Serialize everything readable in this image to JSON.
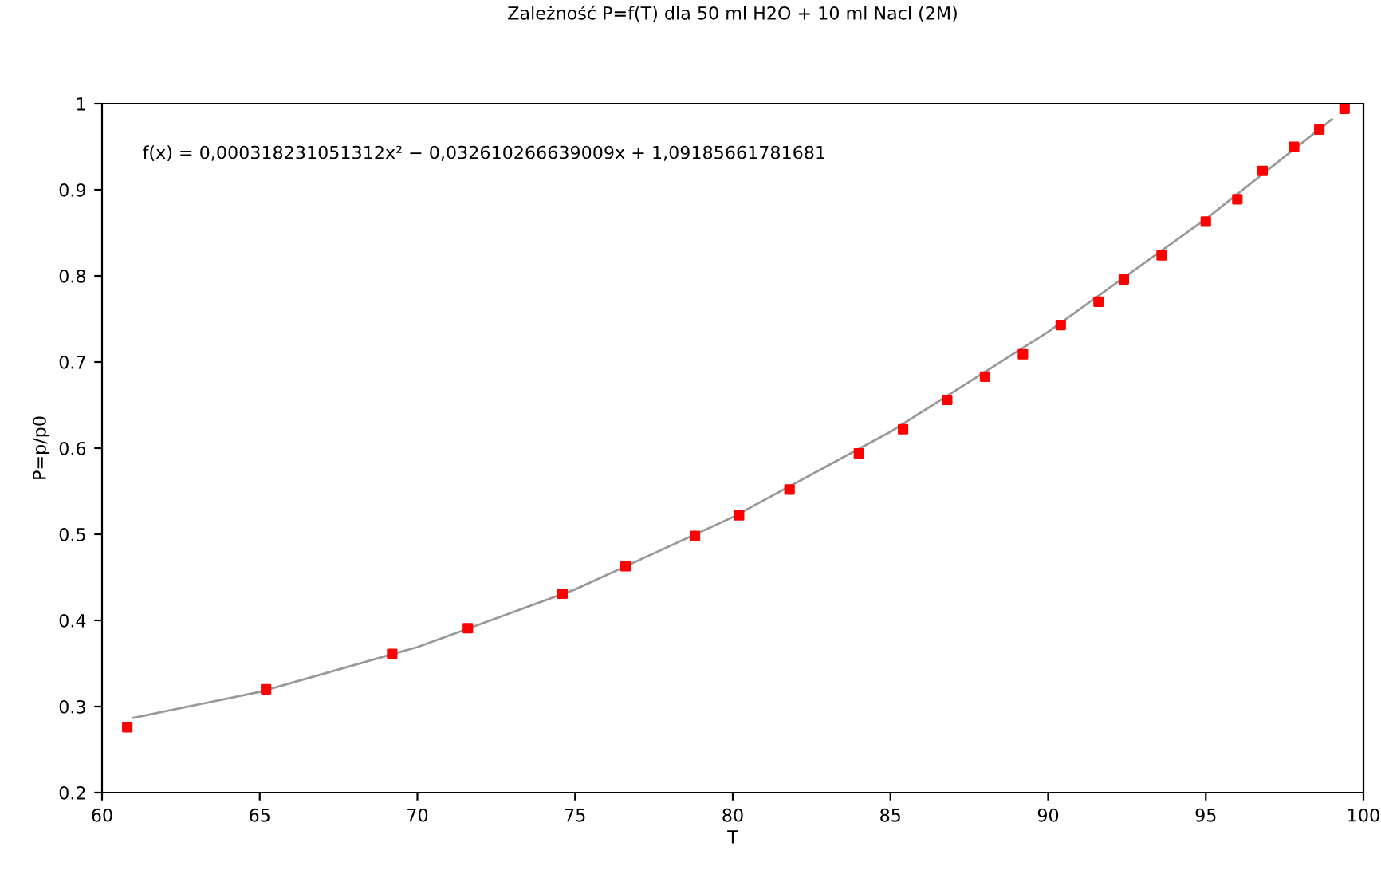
{
  "chart_data": {
    "type": "scatter",
    "title": "Zależność P=f(T) dla 50 ml H2O + 10 ml Nacl (2M)",
    "xlabel": "T",
    "ylabel": "P=p/p0",
    "annotations": [
      "f(x) = 0,000318231051312x² − 0,032610266639009x + 1,09185661781681"
    ],
    "xlim": [
      60,
      100
    ],
    "xticks": [
      60,
      65,
      70,
      75,
      80,
      85,
      90,
      95,
      100
    ],
    "ylim": [
      0.2,
      1
    ],
    "yticks": [
      0.2,
      0.3,
      0.4,
      0.5,
      0.6,
      0.7,
      0.8,
      0.9,
      1
    ],
    "grid": false,
    "legend": false,
    "series": [
      {
        "type": "line",
        "color": "#999999",
        "marker": "none",
        "line_style": "solid",
        "x": [
          61,
          65,
          70,
          75,
          80,
          85,
          90,
          95,
          99
        ],
        "values": [
          0.287,
          0.317,
          0.369,
          0.436,
          0.52,
          0.619,
          0.735,
          0.866,
          0.982
        ]
      },
      {
        "color": "#ff0000",
        "marker": "square",
        "x": [
          60.8,
          65.2,
          69.2,
          71.6,
          74.6,
          76.6,
          78.8,
          80.2,
          81.8,
          84.0,
          85.4,
          86.8,
          88.0,
          89.2,
          90.4,
          91.6,
          92.4,
          93.6,
          95.0,
          96.0,
          96.8,
          97.8,
          98.6,
          99.4
        ],
        "values": [
          0.276,
          0.32,
          0.361,
          0.391,
          0.431,
          0.463,
          0.498,
          0.522,
          0.552,
          0.594,
          0.622,
          0.656,
          0.683,
          0.709,
          0.743,
          0.77,
          0.796,
          0.824,
          0.863,
          0.889,
          0.922,
          0.95,
          0.97,
          0.994
        ]
      }
    ]
  }
}
